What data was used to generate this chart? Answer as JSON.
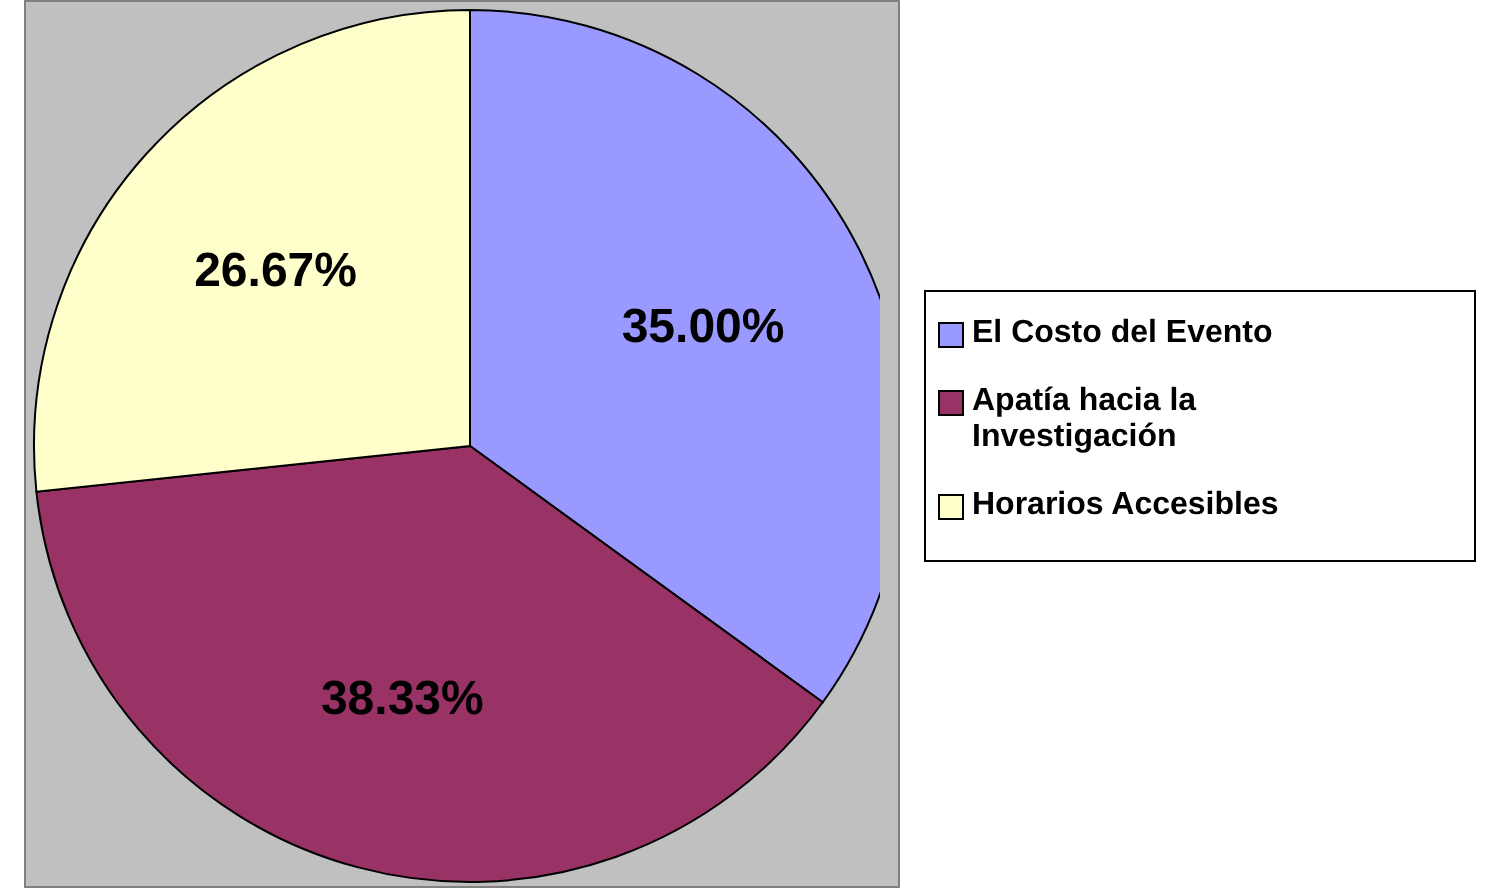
{
  "chart_data": {
    "type": "pie",
    "categories": [
      "El Costo del Evento",
      "Apatía hacia la Investigación",
      "Horarios Accesibles"
    ],
    "values": [
      35,
      38.33,
      26.67
    ],
    "colors": [
      "#9999ff",
      "#993366",
      "#ffffcc"
    ],
    "value_labels": [
      "35.00%",
      "38.33%",
      "26.67%"
    ],
    "legend": "right"
  }
}
